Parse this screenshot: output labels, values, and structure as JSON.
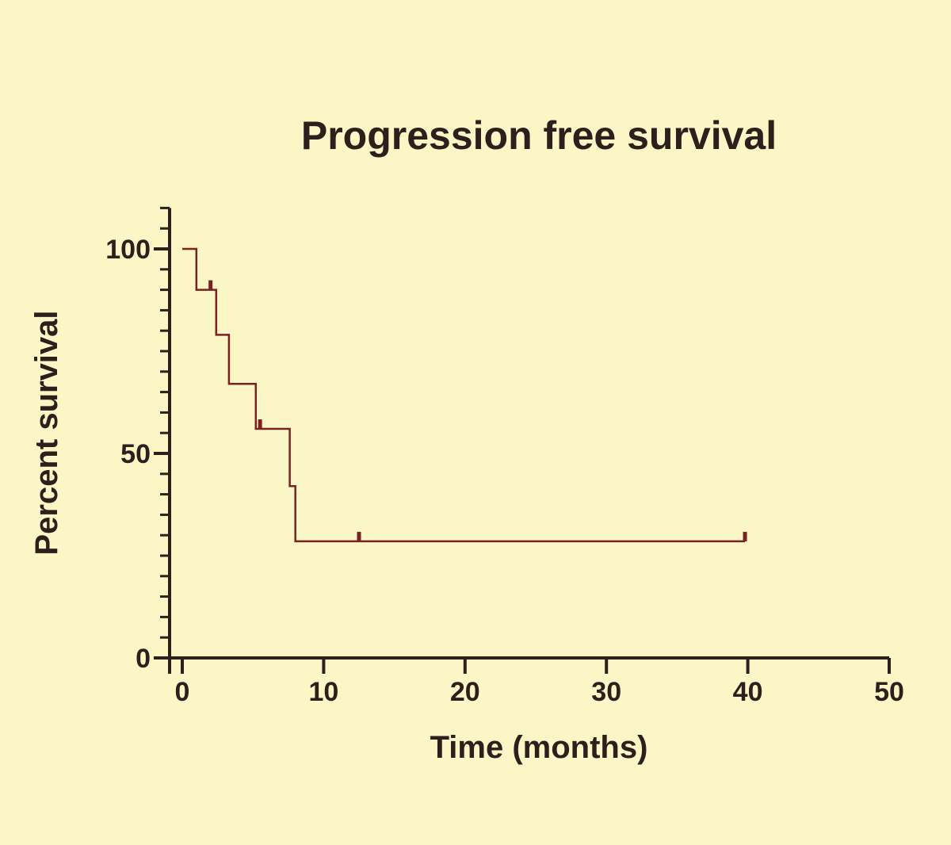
{
  "chart_data": {
    "type": "line",
    "title": "Progression free survival",
    "xlabel": "Time (months)",
    "ylabel": "Percent survival",
    "xlim": [
      0,
      50
    ],
    "ylim": [
      0,
      110
    ],
    "xticks": [
      "0",
      "10",
      "20",
      "30",
      "40",
      "50"
    ],
    "yticks": [
      "0",
      "50",
      "100"
    ],
    "grid": false,
    "step": true,
    "series": [
      {
        "color": "#7a2222",
        "points": [
          [
            0,
            100
          ],
          [
            1.0,
            100
          ],
          [
            1.0,
            90
          ],
          [
            2.4,
            90
          ],
          [
            2.4,
            79
          ],
          [
            3.3,
            79
          ],
          [
            3.3,
            67
          ],
          [
            5.2,
            67
          ],
          [
            5.2,
            56
          ],
          [
            7.6,
            56
          ],
          [
            7.6,
            42
          ],
          [
            8.0,
            42
          ],
          [
            8.0,
            28.5
          ],
          [
            39.8,
            28.5
          ]
        ],
        "censored": [
          [
            2.0,
            90
          ],
          [
            5.5,
            56
          ],
          [
            12.5,
            28.5
          ],
          [
            39.8,
            28.5
          ]
        ]
      }
    ]
  }
}
